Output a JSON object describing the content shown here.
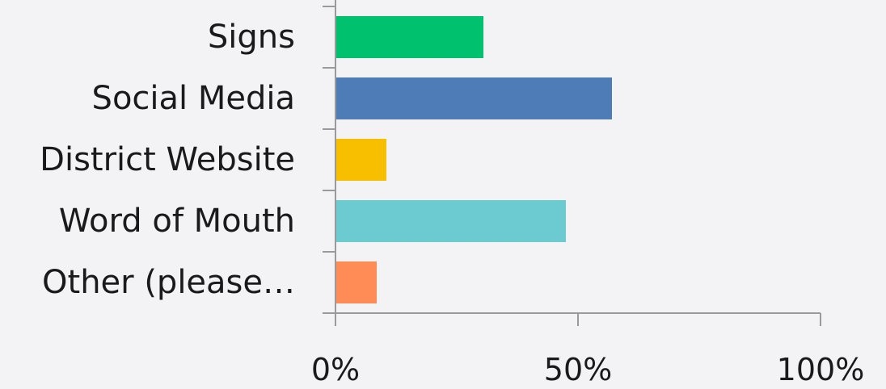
{
  "chart_data": {
    "type": "bar",
    "orientation": "horizontal",
    "categories": [
      "Signs",
      "Social Media",
      "District Website",
      "Word of Mouth",
      "Other (please…"
    ],
    "values": [
      30.5,
      57,
      10.5,
      47.5,
      8.5
    ],
    "colors": [
      "#00c16e",
      "#4e7cb7",
      "#f8be00",
      "#6ccbd0",
      "#ff8c56"
    ],
    "xlim": [
      0,
      100
    ],
    "xticks": [
      {
        "value": 0,
        "label": "0%"
      },
      {
        "value": 50,
        "label": "50%"
      },
      {
        "value": 100,
        "label": "100%"
      }
    ],
    "grid": false,
    "legend": false
  }
}
